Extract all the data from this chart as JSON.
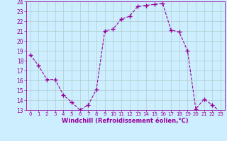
{
  "x": [
    0,
    1,
    2,
    3,
    4,
    5,
    6,
    7,
    8,
    9,
    10,
    11,
    12,
    13,
    14,
    15,
    16,
    17,
    18,
    19,
    20,
    21,
    22,
    23
  ],
  "y": [
    18.6,
    17.5,
    16.1,
    16.1,
    14.5,
    13.8,
    13.0,
    13.5,
    15.1,
    21.0,
    21.2,
    22.2,
    22.5,
    23.5,
    23.6,
    23.7,
    23.8,
    21.1,
    20.9,
    19.0,
    13.1,
    14.1,
    13.5,
    12.8
  ],
  "line_color": "#990099",
  "marker": "+",
  "marker_size": 4,
  "bg_color": "#cceeff",
  "grid_color": "#b0cccc",
  "xlabel": "Windchill (Refroidissement éolien,°C)",
  "xlabel_color": "#990099",
  "tick_color": "#990099",
  "ylim": [
    13,
    24
  ],
  "xlim": [
    -0.5,
    23.5
  ],
  "yticks": [
    13,
    14,
    15,
    16,
    17,
    18,
    19,
    20,
    21,
    22,
    23,
    24
  ],
  "xticks": [
    0,
    1,
    2,
    3,
    4,
    5,
    6,
    7,
    8,
    9,
    10,
    11,
    12,
    13,
    14,
    15,
    16,
    17,
    18,
    19,
    20,
    21,
    22,
    23
  ],
  "figsize": [
    3.2,
    2.0
  ],
  "dpi": 100
}
